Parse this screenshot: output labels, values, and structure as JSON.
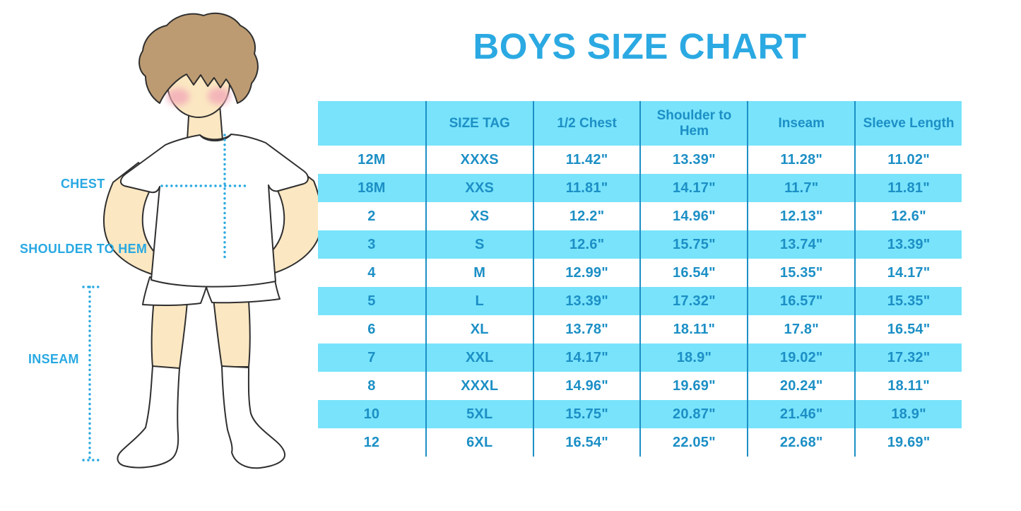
{
  "title": "BOYS SIZE CHART",
  "figure": {
    "labels": {
      "chest": "CHEST",
      "shoulder_to_hem": "SHOULDER TO HEM",
      "inseam": "INSEAM"
    }
  },
  "colors": {
    "accent_blue": "#29A9E2",
    "table_fill_cyan": "#78E3FB",
    "table_text_blue": "#1C8FC5",
    "skin": "#FBE7C2",
    "hair_brown": "#BD9B72",
    "blush_pink": "#F2A9B8"
  },
  "chart_data": {
    "type": "table",
    "title": "BOYS SIZE CHART",
    "columns": [
      "",
      "SIZE TAG",
      "1/2 Chest",
      "Shoulder to Hem",
      "Inseam",
      "Sleeve Length"
    ],
    "rows": [
      [
        "12M",
        "XXXS",
        "11.42\"",
        "13.39\"",
        "11.28\"",
        "11.02\""
      ],
      [
        "18M",
        "XXS",
        "11.81\"",
        "14.17\"",
        "11.7\"",
        "11.81\""
      ],
      [
        "2",
        "XS",
        "12.2\"",
        "14.96\"",
        "12.13\"",
        "12.6\""
      ],
      [
        "3",
        "S",
        "12.6\"",
        "15.75\"",
        "13.74\"",
        "13.39\""
      ],
      [
        "4",
        "M",
        "12.99\"",
        "16.54\"",
        "15.35\"",
        "14.17\""
      ],
      [
        "5",
        "L",
        "13.39\"",
        "17.32\"",
        "16.57\"",
        "15.35\""
      ],
      [
        "6",
        "XL",
        "13.78\"",
        "18.11\"",
        "17.8\"",
        "16.54\""
      ],
      [
        "7",
        "XXL",
        "14.17\"",
        "18.9\"",
        "19.02\"",
        "17.32\""
      ],
      [
        "8",
        "XXXL",
        "14.96\"",
        "19.69\"",
        "20.24\"",
        "18.11\""
      ],
      [
        "10",
        "5XL",
        "15.75\"",
        "20.87\"",
        "21.46\"",
        "18.9\""
      ],
      [
        "12",
        "6XL",
        "16.54\"",
        "22.05\"",
        "22.68\"",
        "19.69\""
      ]
    ]
  }
}
